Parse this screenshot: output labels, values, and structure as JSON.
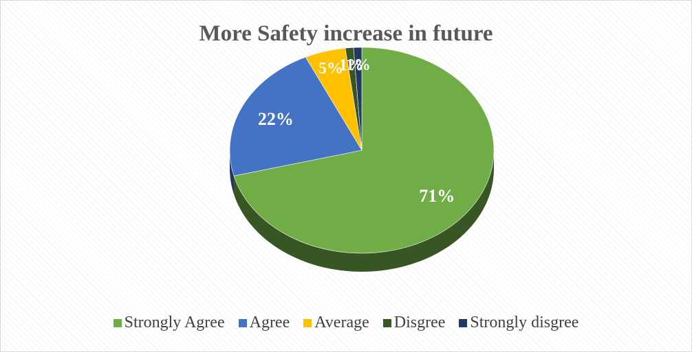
{
  "chart_data": {
    "type": "pie",
    "title": "More Safety increase in future",
    "style": "3d-tilted",
    "legend_position": "bottom",
    "slices": [
      {
        "name": "Strongly Agree",
        "value": 71,
        "label": "71%",
        "color": "#70AD47",
        "side_color": "#375623"
      },
      {
        "name": "Agree",
        "value": 22,
        "label": "22%",
        "color": "#4472C4",
        "side_color": "#203864"
      },
      {
        "name": "Average",
        "value": 5,
        "label": "5%",
        "color": "#FFC000",
        "side_color": "#7F6000"
      },
      {
        "name": "Disgree",
        "value": 1,
        "label": "1%",
        "color": "#375623",
        "side_color": "#1E3312"
      },
      {
        "name": "Strongly disgree",
        "value": 1,
        "label": "1%",
        "color": "#203864",
        "side_color": "#111E36"
      }
    ]
  }
}
